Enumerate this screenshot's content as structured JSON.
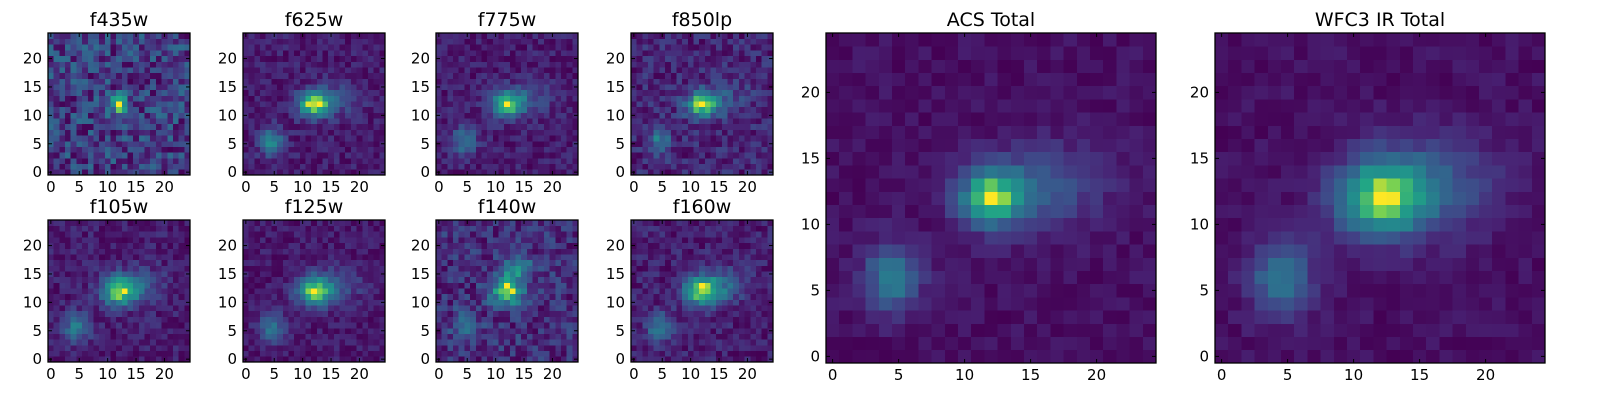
{
  "chart_data": {
    "type": "heatmap",
    "colormap": "viridis",
    "grid": false,
    "legend": "none",
    "x_ticks": [
      "0",
      "5",
      "10",
      "15",
      "20"
    ],
    "y_ticks": [
      "0",
      "5",
      "10",
      "15",
      "20"
    ],
    "xlim": [
      -0.5,
      24.5
    ],
    "ylim": [
      -0.5,
      24.5
    ],
    "grid_size": [
      25,
      25
    ],
    "panels": [
      {
        "title": "f435w",
        "row": 0,
        "col": 0,
        "sources": [
          {
            "x": 12,
            "y": 12,
            "amp": 1.0,
            "sx": 1.2,
            "sy": 1.1
          }
        ],
        "background": 0.55,
        "noise": 0.35,
        "seed": 11
      },
      {
        "title": "f625w",
        "row": 0,
        "col": 1,
        "sources": [
          {
            "x": 12,
            "y": 12,
            "amp": 1.0,
            "sx": 2.0,
            "sy": 1.6
          },
          {
            "x": 4.5,
            "y": 5.5,
            "amp": 0.55,
            "sx": 1.5,
            "sy": 1.8
          },
          {
            "x": 16,
            "y": 13,
            "amp": 0.25,
            "sx": 3.0,
            "sy": 2.0
          }
        ],
        "background": 0.12,
        "noise": 0.12,
        "seed": 23
      },
      {
        "title": "f775w",
        "row": 0,
        "col": 2,
        "sources": [
          {
            "x": 12,
            "y": 12,
            "amp": 1.0,
            "sx": 2.0,
            "sy": 1.6
          },
          {
            "x": 4.5,
            "y": 5.5,
            "amp": 0.55,
            "sx": 1.5,
            "sy": 1.8
          },
          {
            "x": 16,
            "y": 13,
            "amp": 0.25,
            "sx": 3.0,
            "sy": 2.0
          }
        ],
        "background": 0.1,
        "noise": 0.14,
        "seed": 37
      },
      {
        "title": "f850lp",
        "row": 0,
        "col": 3,
        "sources": [
          {
            "x": 12,
            "y": 12,
            "amp": 1.0,
            "sx": 2.0,
            "sy": 1.6
          },
          {
            "x": 4.5,
            "y": 5.5,
            "amp": 0.5,
            "sx": 1.4,
            "sy": 1.7
          },
          {
            "x": 16,
            "y": 13,
            "amp": 0.25,
            "sx": 3.0,
            "sy": 2.0
          }
        ],
        "background": 0.22,
        "noise": 0.18,
        "seed": 41
      },
      {
        "title": "f105w",
        "row": 1,
        "col": 0,
        "sources": [
          {
            "x": 12,
            "y": 12,
            "amp": 1.0,
            "sx": 2.2,
            "sy": 1.8
          },
          {
            "x": 4.5,
            "y": 5.5,
            "amp": 0.55,
            "sx": 1.6,
            "sy": 1.8
          },
          {
            "x": 16,
            "y": 13,
            "amp": 0.3,
            "sx": 3.2,
            "sy": 2.2
          }
        ],
        "background": 0.2,
        "noise": 0.14,
        "seed": 53
      },
      {
        "title": "f125w",
        "row": 1,
        "col": 1,
        "sources": [
          {
            "x": 12,
            "y": 12,
            "amp": 1.0,
            "sx": 2.2,
            "sy": 1.8
          },
          {
            "x": 4.5,
            "y": 5.5,
            "amp": 0.5,
            "sx": 1.6,
            "sy": 1.8
          },
          {
            "x": 16,
            "y": 13,
            "amp": 0.3,
            "sx": 3.2,
            "sy": 2.2
          }
        ],
        "background": 0.18,
        "noise": 0.12,
        "seed": 67
      },
      {
        "title": "f140w",
        "row": 1,
        "col": 2,
        "sources": [
          {
            "x": 12,
            "y": 12,
            "amp": 1.0,
            "sx": 2.0,
            "sy": 1.8
          },
          {
            "x": 14,
            "y": 16,
            "amp": 0.5,
            "sx": 2.0,
            "sy": 1.5
          },
          {
            "x": 4.5,
            "y": 5.5,
            "amp": 0.45,
            "sx": 1.6,
            "sy": 1.8
          }
        ],
        "background": 0.32,
        "noise": 0.22,
        "seed": 79
      },
      {
        "title": "f160w",
        "row": 1,
        "col": 3,
        "sources": [
          {
            "x": 12,
            "y": 12,
            "amp": 1.0,
            "sx": 2.2,
            "sy": 1.8
          },
          {
            "x": 4.5,
            "y": 5.5,
            "amp": 0.5,
            "sx": 1.6,
            "sy": 1.8
          },
          {
            "x": 16,
            "y": 13,
            "amp": 0.3,
            "sx": 3.2,
            "sy": 2.2
          }
        ],
        "background": 0.2,
        "noise": 0.14,
        "seed": 83
      },
      {
        "title": "ACS Total",
        "row": 0,
        "col": 4,
        "large": true,
        "sources": [
          {
            "x": 12,
            "y": 12,
            "amp": 1.0,
            "sx": 1.7,
            "sy": 1.5
          },
          {
            "x": 4.5,
            "y": 6,
            "amp": 0.6,
            "sx": 1.5,
            "sy": 1.8
          },
          {
            "x": 16,
            "y": 13,
            "amp": 0.35,
            "sx": 3.2,
            "sy": 2.2
          }
        ],
        "background": 0.08,
        "noise": 0.07,
        "seed": 97
      },
      {
        "title": "WFC3 IR Total",
        "row": 0,
        "col": 5,
        "large": true,
        "sources": [
          {
            "x": 12,
            "y": 12,
            "amp": 1.0,
            "sx": 2.3,
            "sy": 2.0
          },
          {
            "x": 4.5,
            "y": 6,
            "amp": 0.55,
            "sx": 1.7,
            "sy": 2.0
          },
          {
            "x": 16,
            "y": 13,
            "amp": 0.4,
            "sx": 3.5,
            "sy": 2.6
          }
        ],
        "background": 0.12,
        "noise": 0.07,
        "seed": 101
      }
    ]
  }
}
